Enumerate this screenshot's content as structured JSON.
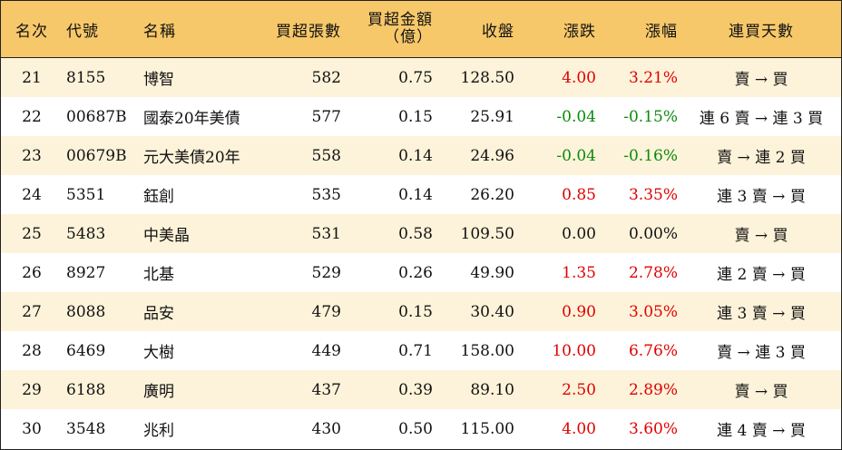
{
  "headers": {
    "rank": "名次",
    "code": "代號",
    "name": "名稱",
    "net_buy_lots": "買超張數",
    "net_buy_amount_line1": "買超金額",
    "net_buy_amount_line2": "（億）",
    "close": "收盤",
    "change": "漲跌",
    "change_pct": "漲幅",
    "consecutive": "連買天數"
  },
  "rows": [
    {
      "rank": "21",
      "code": "8155",
      "name": "博智",
      "lots": "582",
      "amount": "0.75",
      "close": "128.50",
      "change": "4.00",
      "pct": "3.21%",
      "streak": "賣 → 買",
      "dir": "up"
    },
    {
      "rank": "22",
      "code": "00687B",
      "name": "國泰20年美債",
      "lots": "577",
      "amount": "0.15",
      "close": "25.91",
      "change": "-0.04",
      "pct": "-0.15%",
      "streak": "連 6 賣 → 連 3 買",
      "dir": "down"
    },
    {
      "rank": "23",
      "code": "00679B",
      "name": "元大美債20年",
      "lots": "558",
      "amount": "0.14",
      "close": "24.96",
      "change": "-0.04",
      "pct": "-0.16%",
      "streak": "賣 → 連 2 買",
      "dir": "down"
    },
    {
      "rank": "24",
      "code": "5351",
      "name": "鈺創",
      "lots": "535",
      "amount": "0.14",
      "close": "26.20",
      "change": "0.85",
      "pct": "3.35%",
      "streak": "連 3 賣 → 買",
      "dir": "up"
    },
    {
      "rank": "25",
      "code": "5483",
      "name": "中美晶",
      "lots": "531",
      "amount": "0.58",
      "close": "109.50",
      "change": "0.00",
      "pct": "0.00%",
      "streak": "賣 → 買",
      "dir": "flat"
    },
    {
      "rank": "26",
      "code": "8927",
      "name": "北基",
      "lots": "529",
      "amount": "0.26",
      "close": "49.90",
      "change": "1.35",
      "pct": "2.78%",
      "streak": "連 2 賣 → 買",
      "dir": "up"
    },
    {
      "rank": "27",
      "code": "8088",
      "name": "品安",
      "lots": "479",
      "amount": "0.15",
      "close": "30.40",
      "change": "0.90",
      "pct": "3.05%",
      "streak": "連 3 賣 → 買",
      "dir": "up"
    },
    {
      "rank": "28",
      "code": "6469",
      "name": "大樹",
      "lots": "449",
      "amount": "0.71",
      "close": "158.00",
      "change": "10.00",
      "pct": "6.76%",
      "streak": "賣 → 連 3 買",
      "dir": "up"
    },
    {
      "rank": "29",
      "code": "6188",
      "name": "廣明",
      "lots": "437",
      "amount": "0.39",
      "close": "89.10",
      "change": "2.50",
      "pct": "2.89%",
      "streak": "賣 → 買",
      "dir": "up"
    },
    {
      "rank": "30",
      "code": "3548",
      "name": "兆利",
      "lots": "430",
      "amount": "0.50",
      "close": "115.00",
      "change": "4.00",
      "pct": "3.60%",
      "streak": "連 4 賣 → 買",
      "dir": "up"
    }
  ],
  "colors": {
    "header_bg": "#f7c86a",
    "odd_row_bg": "#fdf3da",
    "up": "#e00000",
    "down": "#0a8a0a"
  }
}
